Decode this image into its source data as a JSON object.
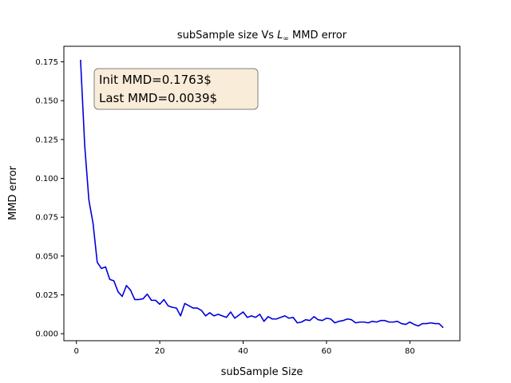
{
  "chart_data": {
    "type": "line",
    "title": "subSample size Vs L∞ MMD error",
    "title_parts": {
      "prefix": "subSample size Vs ",
      "italic": "L",
      "subscript": "∞",
      "suffix": " MMD error"
    },
    "xlabel": "subSample Size",
    "ylabel": "MMD error",
    "xlim": [
      -3,
      92
    ],
    "ylim": [
      -0.0045,
      0.185
    ],
    "xticks": [
      0,
      20,
      40,
      60,
      80
    ],
    "xtick_labels": [
      "0",
      "20",
      "40",
      "60",
      "80"
    ],
    "yticks": [
      0.0,
      0.025,
      0.05,
      0.075,
      0.1,
      0.125,
      0.15,
      0.175
    ],
    "ytick_labels": [
      "0.000",
      "0.025",
      "0.050",
      "0.075",
      "0.100",
      "0.125",
      "0.150",
      "0.175"
    ],
    "grid": false,
    "series": [
      {
        "color": "#0000dd",
        "x": [
          1,
          2,
          3,
          4,
          5,
          6,
          7,
          8,
          9,
          10,
          11,
          12,
          13,
          14,
          15,
          16,
          17,
          18,
          19,
          20,
          21,
          22,
          23,
          24,
          25,
          26,
          27,
          28,
          29,
          30,
          31,
          32,
          33,
          34,
          35,
          36,
          37,
          38,
          39,
          40,
          41,
          42,
          43,
          44,
          45,
          46,
          47,
          48,
          49,
          50,
          51,
          52,
          53,
          54,
          55,
          56,
          57,
          58,
          59,
          60,
          61,
          62,
          63,
          64,
          65,
          66,
          67,
          68,
          69,
          70,
          71,
          72,
          73,
          74,
          75,
          76,
          77,
          78,
          79,
          80,
          81,
          82,
          83,
          84,
          85,
          86,
          87,
          88
        ],
        "y": [
          0.1763,
          0.121,
          0.086,
          0.071,
          0.046,
          0.042,
          0.043,
          0.035,
          0.034,
          0.027,
          0.024,
          0.031,
          0.028,
          0.022,
          0.022,
          0.0225,
          0.0255,
          0.0215,
          0.0215,
          0.019,
          0.022,
          0.018,
          0.017,
          0.0165,
          0.0115,
          0.0195,
          0.018,
          0.0165,
          0.0165,
          0.015,
          0.0115,
          0.0135,
          0.0115,
          0.0125,
          0.0115,
          0.0105,
          0.014,
          0.01,
          0.012,
          0.014,
          0.0105,
          0.0115,
          0.0105,
          0.0125,
          0.008,
          0.011,
          0.0095,
          0.0095,
          0.0105,
          0.0115,
          0.01,
          0.0105,
          0.007,
          0.0075,
          0.009,
          0.0085,
          0.011,
          0.009,
          0.0085,
          0.01,
          0.0095,
          0.007,
          0.008,
          0.0085,
          0.0095,
          0.009,
          0.007,
          0.0075,
          0.0075,
          0.007,
          0.008,
          0.0075,
          0.0085,
          0.0085,
          0.0075,
          0.0075,
          0.008,
          0.0065,
          0.006,
          0.0075,
          0.006,
          0.005,
          0.0065,
          0.0065,
          0.007,
          0.0065,
          0.0065,
          0.0039
        ]
      }
    ],
    "annotation": {
      "lines": [
        "Init MMD=0.1763$",
        "Last MMD=0.0039$"
      ],
      "position": "top-left",
      "box_fill": "#f9ecd8",
      "box_edge": "#7f7f7f"
    }
  }
}
